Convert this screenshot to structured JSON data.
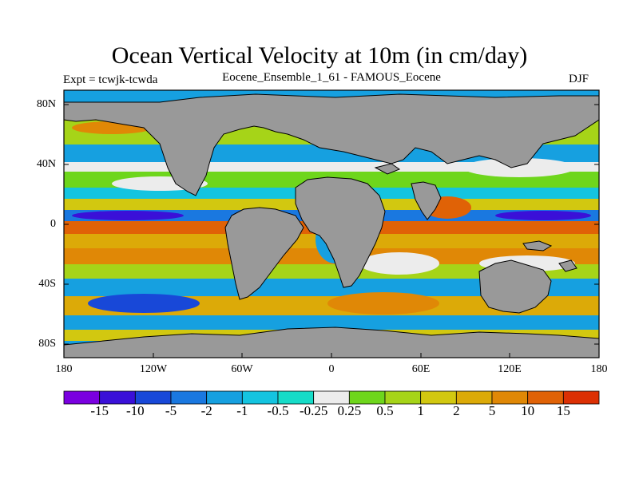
{
  "title": "Ocean Vertical Velocity at 10m (in cm/day)",
  "subtitle_left": "Expt = tcwjk-tcwda",
  "subtitle_center": "Eocene_Ensemble_1_61 - FAMOUS_Eocene",
  "subtitle_right": "DJF",
  "lat_labels": [
    "80N",
    "40N",
    "0",
    "40S",
    "80S"
  ],
  "lon_labels": [
    "180",
    "120W",
    "60W",
    "0",
    "60E",
    "120E",
    "180"
  ],
  "colorbar": {
    "colors": [
      "#7a00e0",
      "#3a10d8",
      "#1848d8",
      "#1a78e0",
      "#16a0e0",
      "#14c4e0",
      "#16dcc8",
      "#ececec",
      "#6ed61c",
      "#a6d418",
      "#d2c810",
      "#dcaa08",
      "#e08806",
      "#e06206",
      "#dc3004"
    ],
    "labels": [
      "-15",
      "-10",
      "-5",
      "-2",
      "-1",
      "-0.5",
      "-0.25",
      "0.25",
      "0.5",
      "1",
      "2",
      "5",
      "10",
      "15"
    ]
  },
  "land_color": "#999999"
}
